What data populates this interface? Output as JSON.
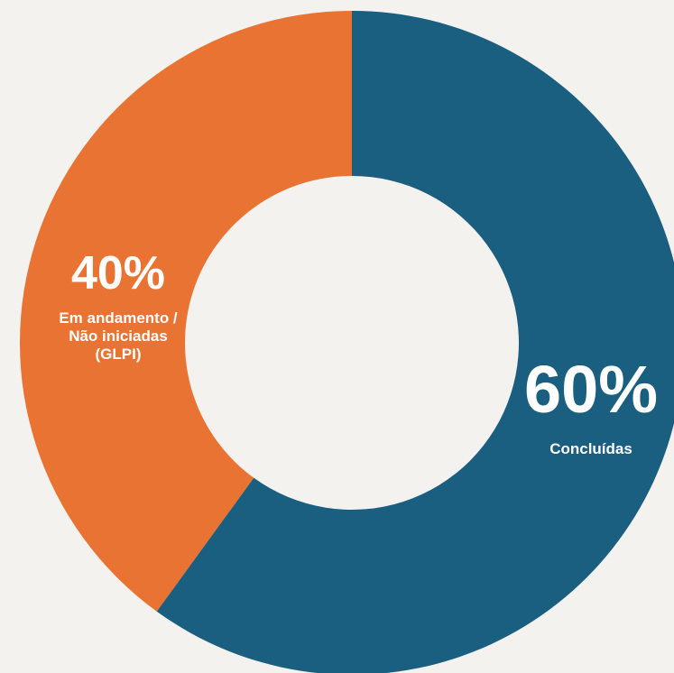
{
  "chart_data": {
    "type": "pie",
    "donut": true,
    "slices": [
      {
        "label_lines": [
          "Concluídas"
        ],
        "value": 60,
        "value_text": "60%",
        "color": "#1a5e80"
      },
      {
        "label_lines": [
          "Em andamento /",
          "Não iniciadas",
          "(GLPI)"
        ],
        "value": 40,
        "value_text": "40%",
        "color": "#e87333"
      }
    ]
  },
  "background_color": "#f3f2ef"
}
